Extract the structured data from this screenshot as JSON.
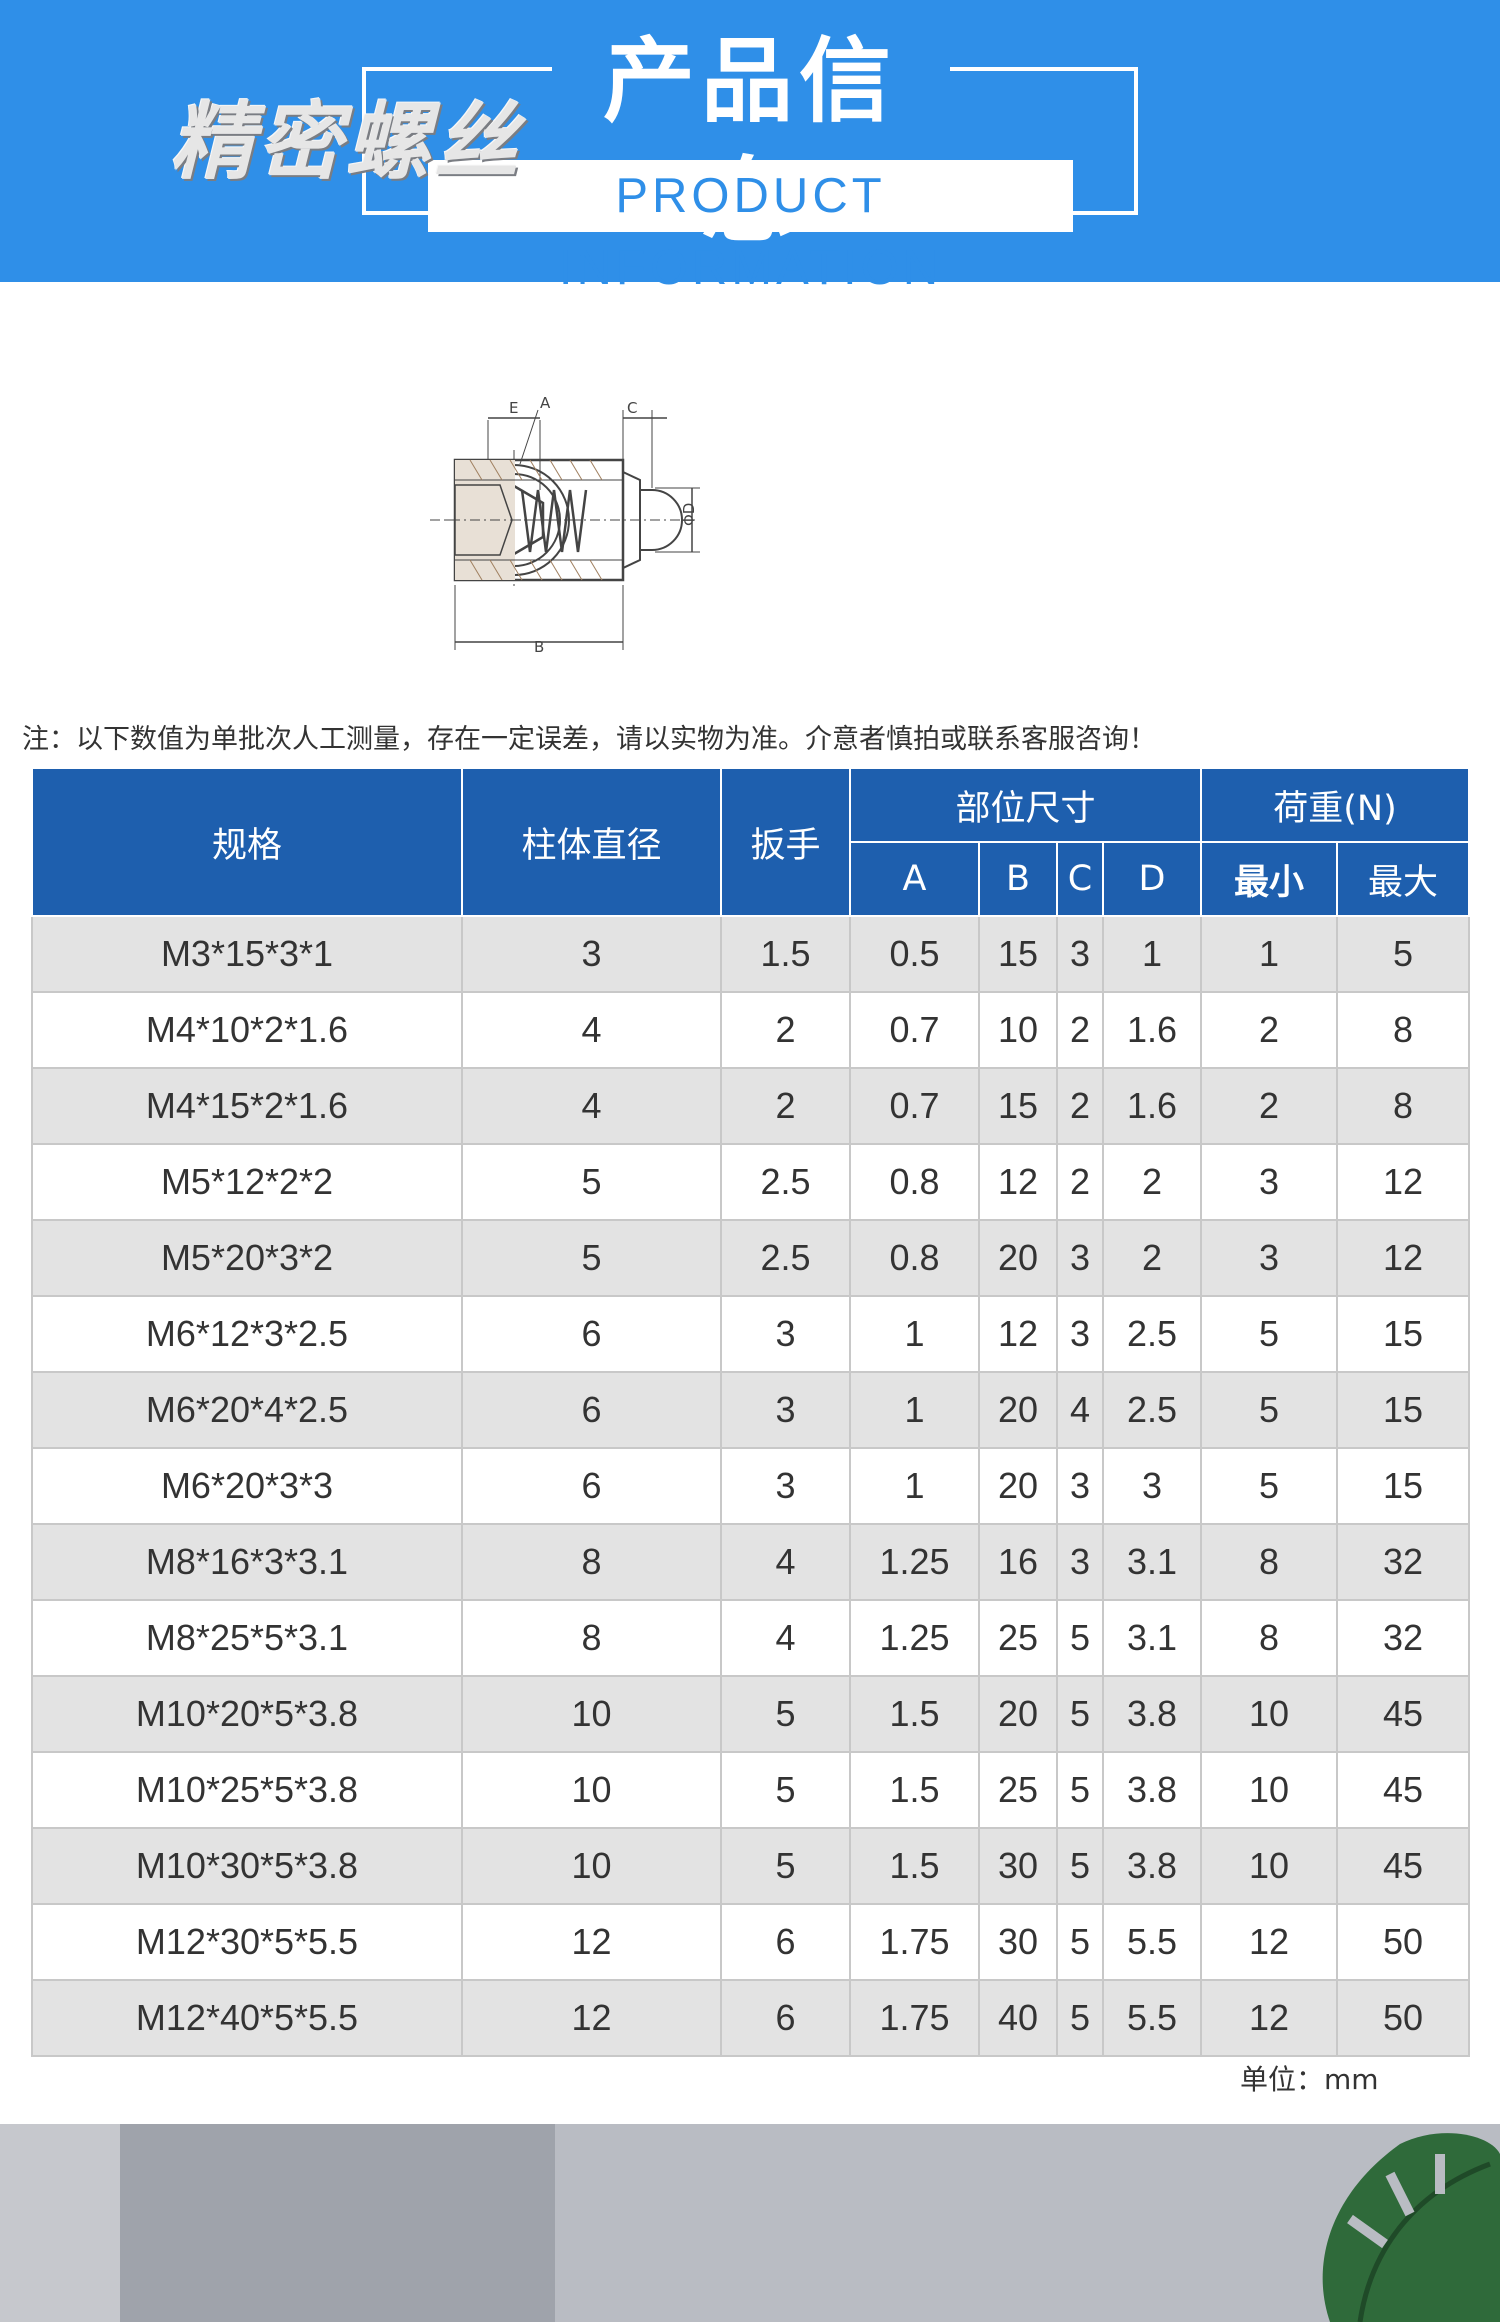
{
  "header": {
    "title": "产品信息",
    "subtitle": "PRODUCT INFORMATION"
  },
  "diagram": {
    "labels": {
      "a": "A",
      "b": "B",
      "c": "C",
      "d": "ΦD",
      "e": "E"
    }
  },
  "note": "注：以下数值为单批次人工测量，存在一定误差，请以实物为准。介意者慎拍或联系客服咨询！",
  "table": {
    "headers": {
      "spec": "规格",
      "diameter": "柱体直径",
      "wrench": "扳手",
      "dimensions": "部位尺寸",
      "load": "荷重(N)",
      "a": "A",
      "b": "B",
      "c": "C",
      "d": "D",
      "min": "最小",
      "max": "最大"
    },
    "rows": [
      [
        "M3*15*3*1",
        "3",
        "1.5",
        "0.5",
        "15",
        "3",
        "1",
        "1",
        "5"
      ],
      [
        "M4*10*2*1.6",
        "4",
        "2",
        "0.7",
        "10",
        "2",
        "1.6",
        "2",
        "8"
      ],
      [
        "M4*15*2*1.6",
        "4",
        "2",
        "0.7",
        "15",
        "2",
        "1.6",
        "2",
        "8"
      ],
      [
        "M5*12*2*2",
        "5",
        "2.5",
        "0.8",
        "12",
        "2",
        "2",
        "3",
        "12"
      ],
      [
        "M5*20*3*2",
        "5",
        "2.5",
        "0.8",
        "20",
        "3",
        "2",
        "3",
        "12"
      ],
      [
        "M6*12*3*2.5",
        "6",
        "3",
        "1",
        "12",
        "3",
        "2.5",
        "5",
        "15"
      ],
      [
        "M6*20*4*2.5",
        "6",
        "3",
        "1",
        "20",
        "4",
        "2.5",
        "5",
        "15"
      ],
      [
        "M6*20*3*3",
        "6",
        "3",
        "1",
        "20",
        "3",
        "3",
        "5",
        "15"
      ],
      [
        "M8*16*3*3.1",
        "8",
        "4",
        "1.25",
        "16",
        "3",
        "3.1",
        "8",
        "32"
      ],
      [
        "M8*25*5*3.1",
        "8",
        "4",
        "1.25",
        "25",
        "5",
        "3.1",
        "8",
        "32"
      ],
      [
        "M10*20*5*3.8",
        "10",
        "5",
        "1.5",
        "20",
        "5",
        "3.8",
        "10",
        "45"
      ],
      [
        "M10*25*5*3.8",
        "10",
        "5",
        "1.5",
        "25",
        "5",
        "3.8",
        "10",
        "45"
      ],
      [
        "M10*30*5*3.8",
        "10",
        "5",
        "1.5",
        "30",
        "5",
        "3.8",
        "10",
        "45"
      ],
      [
        "M12*30*5*5.5",
        "12",
        "6",
        "1.75",
        "30",
        "5",
        "5.5",
        "12",
        "50"
      ],
      [
        "M12*40*5*5.5",
        "12",
        "6",
        "1.75",
        "40",
        "5",
        "5.5",
        "12",
        "50"
      ]
    ]
  },
  "unit": "单位：mm",
  "footer": {
    "title": "精密螺丝"
  },
  "colors": {
    "brand_blue": "#2f8fe8",
    "table_header": "#1e5fae",
    "row_alt": "#e3e3e3"
  }
}
